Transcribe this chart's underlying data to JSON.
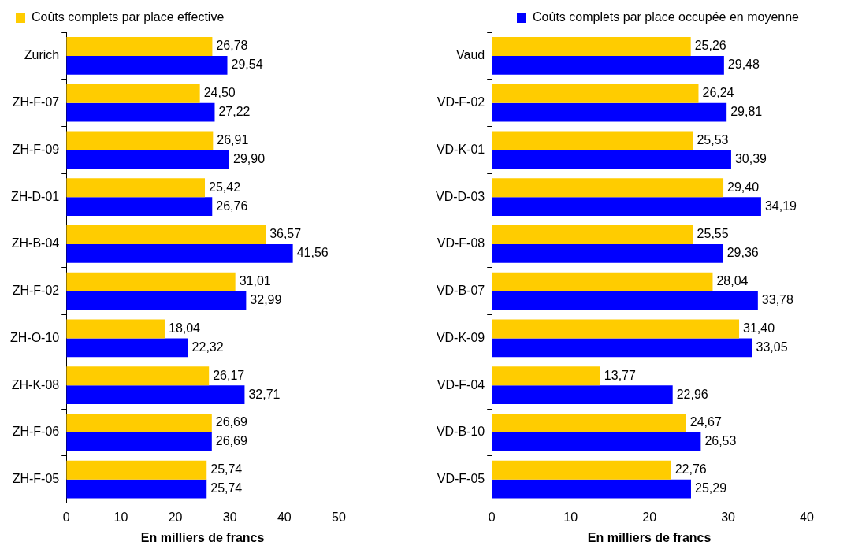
{
  "chart_data": [
    {
      "type": "bar",
      "orientation": "horizontal",
      "categories": [
        "Zurich",
        "ZH-F-07",
        "ZH-F-09",
        "ZH-D-01",
        "ZH-B-04",
        "ZH-F-02",
        "ZH-O-10",
        "ZH-K-08",
        "ZH-F-06",
        "ZH-F-05"
      ],
      "series": [
        {
          "name": "Coûts complets par place effective",
          "color": "#ffcc00",
          "values": [
            26.78,
            24.5,
            26.91,
            25.42,
            36.57,
            31.01,
            18.04,
            26.17,
            26.69,
            25.74
          ],
          "value_labels": [
            "26,78",
            "24,50",
            "26,91",
            "25,42",
            "36,57",
            "31,01",
            "18,04",
            "26,17",
            "26,69",
            "25,74"
          ]
        },
        {
          "color": "#0000ff",
          "values": [
            29.54,
            27.22,
            29.9,
            26.76,
            41.56,
            32.99,
            22.32,
            32.71,
            26.69,
            25.74
          ],
          "value_labels": [
            "29,54",
            "27,22",
            "29,90",
            "26,76",
            "41,56",
            "32,99",
            "22,32",
            "32,71",
            "26,69",
            "25,74"
          ]
        }
      ],
      "xlabel": "En milliers de francs",
      "xlim": [
        0,
        50
      ],
      "xticks": [
        0,
        10,
        20,
        30,
        40,
        50
      ],
      "grid": false,
      "legend": "top left"
    },
    {
      "type": "bar",
      "orientation": "horizontal",
      "categories": [
        "Vaud",
        "VD-F-02",
        "VD-K-01",
        "VD-D-03",
        "VD-F-08",
        "VD-B-07",
        "VD-K-09",
        "VD-F-04",
        "VD-B-10",
        "VD-F-05"
      ],
      "series": [
        {
          "color": "#ffcc00",
          "values": [
            25.26,
            26.24,
            25.53,
            29.4,
            25.55,
            28.04,
            31.4,
            13.77,
            24.67,
            22.76
          ],
          "value_labels": [
            "25,26",
            "26,24",
            "25,53",
            "29,40",
            "25,55",
            "28,04",
            "31,40",
            "13,77",
            "24,67",
            "22,76"
          ]
        },
        {
          "name": "Coûts complets par place occupée en moyenne",
          "color": "#0000ff",
          "values": [
            29.48,
            29.81,
            30.39,
            34.19,
            29.36,
            33.78,
            33.05,
            22.96,
            26.53,
            25.29
          ],
          "value_labels": [
            "29,48",
            "29,81",
            "30,39",
            "34,19",
            "29,36",
            "33,78",
            "33,05",
            "22,96",
            "26,53",
            "25,29"
          ]
        }
      ],
      "xlabel": "En milliers de francs",
      "xlim": [
        0,
        40
      ],
      "xticks": [
        0,
        10,
        20,
        30,
        40
      ],
      "grid": false,
      "legend": "top right"
    }
  ]
}
